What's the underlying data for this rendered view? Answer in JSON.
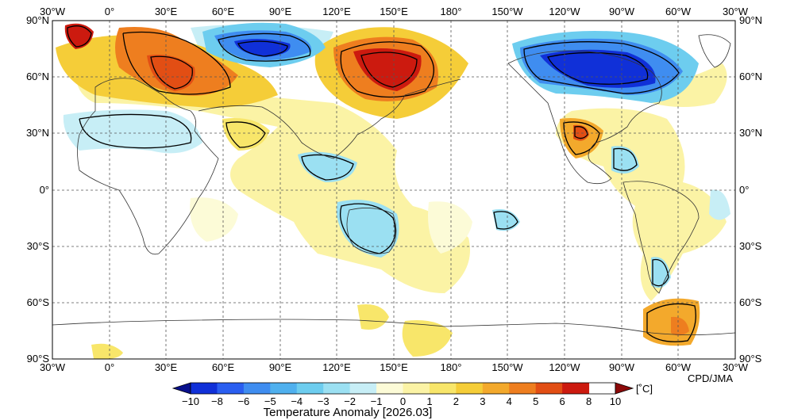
{
  "map": {
    "top_lon_labels": [
      "30°W",
      "0°",
      "30°E",
      "60°E",
      "90°E",
      "120°E",
      "150°E",
      "180°",
      "150°W",
      "120°W",
      "90°W",
      "60°W",
      "30°W"
    ],
    "bottom_lon_labels": [
      "30°W",
      "0°",
      "30°E",
      "60°E",
      "90°E",
      "120°E",
      "150°E",
      "180°",
      "150°W",
      "120°W",
      "90°W",
      "60°W",
      "30°W"
    ],
    "lat_labels": [
      "90°N",
      "60°N",
      "30°N",
      "0°",
      "30°S",
      "60°S",
      "90°S"
    ],
    "credit": "CPD/JMA"
  },
  "colorbar": {
    "ticks": [
      "−10",
      "−8",
      "−6",
      "−5",
      "−4",
      "−3",
      "−2",
      "−1",
      "0",
      "1",
      "2",
      "3",
      "4",
      "5",
      "6",
      "8",
      "10"
    ],
    "unit": "[˚C]",
    "title": "Temperature Anomaly [2026.03]",
    "colors": [
      "#08108c",
      "#1030d8",
      "#2a5ef0",
      "#3f8df0",
      "#4fb0ee",
      "#6dcdef",
      "#9be0f2",
      "#c7eef6",
      "#fcfbd7",
      "#fbf3a5",
      "#f8e66a",
      "#f5cd38",
      "#f3a92c",
      "#ee7e1f",
      "#e24e14",
      "#cc1a0f",
      "#8c0a0a"
    ]
  },
  "anomaly_regions": [
    {
      "name": "northern-scandinavia-warm",
      "level": 5,
      "color": "#e24e14"
    },
    {
      "name": "eastern-europe-warm",
      "level": 4,
      "color": "#ee7e1f"
    },
    {
      "name": "siberia-cold",
      "level": -5,
      "color": "#1030d8"
    },
    {
      "name": "east-siberia-warm",
      "level": 6,
      "color": "#cc1a0f"
    },
    {
      "name": "canada-cold",
      "level": -5,
      "color": "#1030d8"
    },
    {
      "name": "mexico-warm",
      "level": 4,
      "color": "#f3a92c"
    },
    {
      "name": "australia-cool",
      "level": -2,
      "color": "#9be0f2"
    },
    {
      "name": "antarctic-peninsula-warm",
      "level": 3,
      "color": "#f3a92c"
    }
  ]
}
